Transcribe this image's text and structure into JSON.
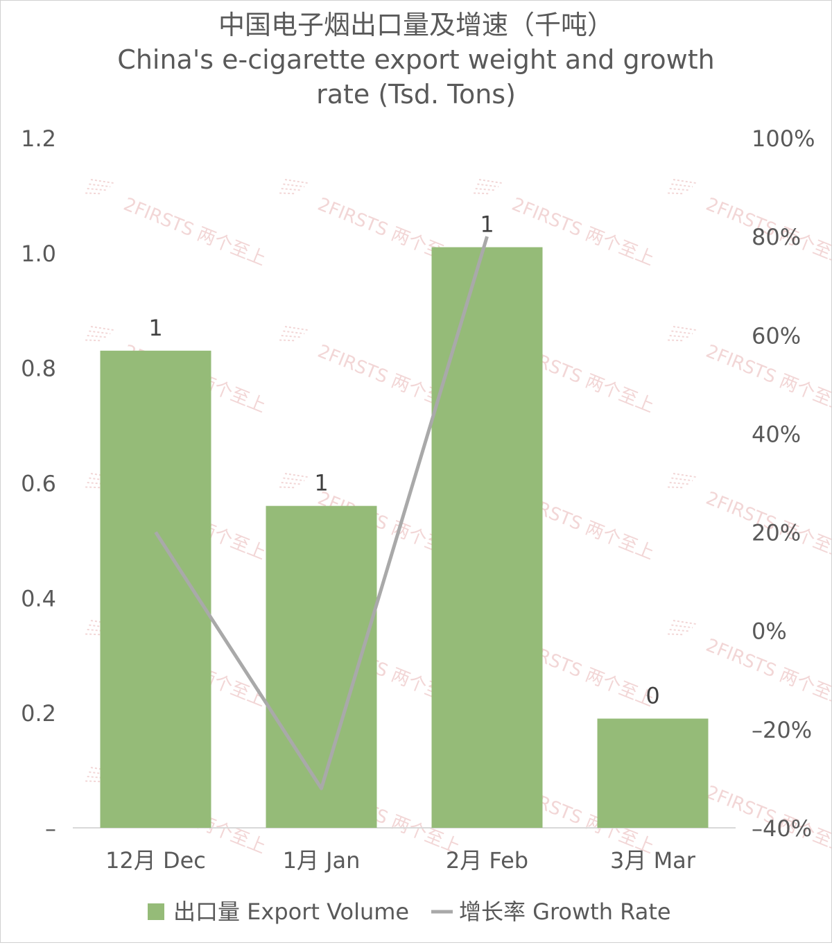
{
  "chart_data": {
    "type": "bar",
    "title": "中国电子烟出口量及增速（千吨）",
    "subtitle": "China's e-cigarette export weight and growth rate (Tsd. Tons)",
    "categories": [
      "12月 Dec",
      "1月 Jan",
      "2月 Feb",
      "3月 Mar"
    ],
    "series": [
      {
        "name": "出口量 Export Volume",
        "type": "bar",
        "axis": "left",
        "values": [
          0.83,
          0.56,
          1.01,
          0.19
        ],
        "data_labels": [
          "1",
          "1",
          "1",
          "0"
        ]
      },
      {
        "name": "增长率 Growth Rate",
        "type": "line",
        "axis": "right",
        "values": [
          0.2,
          -0.32,
          0.8,
          null
        ]
      }
    ],
    "y_left": {
      "ylim": [
        0,
        1.2
      ],
      "ticks": [
        0,
        0.2,
        0.4,
        0.6,
        0.8,
        1.0,
        1.2
      ],
      "tick_labels": [
        "–",
        "0.2",
        "0.4",
        "0.6",
        "0.8",
        "1.0",
        "1.2"
      ]
    },
    "y_right": {
      "ylim": [
        -0.4,
        1.0
      ],
      "ticks": [
        -0.4,
        -0.2,
        0,
        0.2,
        0.4,
        0.6,
        0.8,
        1.0
      ],
      "tick_labels": [
        "–40%",
        "–20%",
        "0%",
        "20%",
        "40%",
        "60%",
        "80%",
        "100%"
      ]
    },
    "grid": false,
    "legend": "bottom",
    "colors": {
      "bar": "#95bb78",
      "line": "#a9a9a9",
      "text": "#595959",
      "label": "#404040"
    }
  },
  "watermark": "2FIRSTS 两个至上"
}
